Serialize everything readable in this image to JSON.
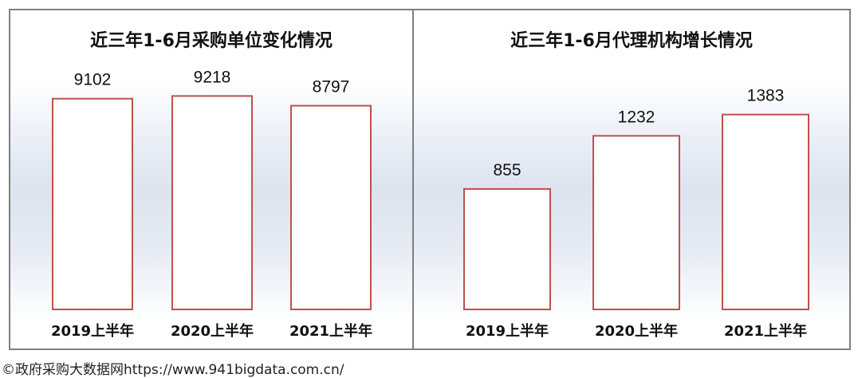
{
  "chart_data": [
    {
      "type": "bar",
      "title": "近三年1-6月采购单位变化情况",
      "categories": [
        "2019上半年",
        "2020上半年",
        "2021上半年"
      ],
      "values": [
        9102,
        9218,
        8797
      ],
      "ylim": [
        0,
        9300
      ],
      "grid": false,
      "legend": "none",
      "bar_fill": "#ffffff",
      "bar_stroke": "#c0504d"
    },
    {
      "type": "bar",
      "title": "近三年1-6月代理机构增长情况",
      "categories": [
        "2019上半年",
        "2020上半年",
        "2021上半年"
      ],
      "values": [
        855,
        1232,
        1383
      ],
      "ylim": [
        0,
        1500
      ],
      "grid": false,
      "legend": "none",
      "bar_fill": "#ffffff",
      "bar_stroke": "#c0504d"
    }
  ],
  "footer": "©政府采购大数据网https://www.941bigdata.com.cn/"
}
